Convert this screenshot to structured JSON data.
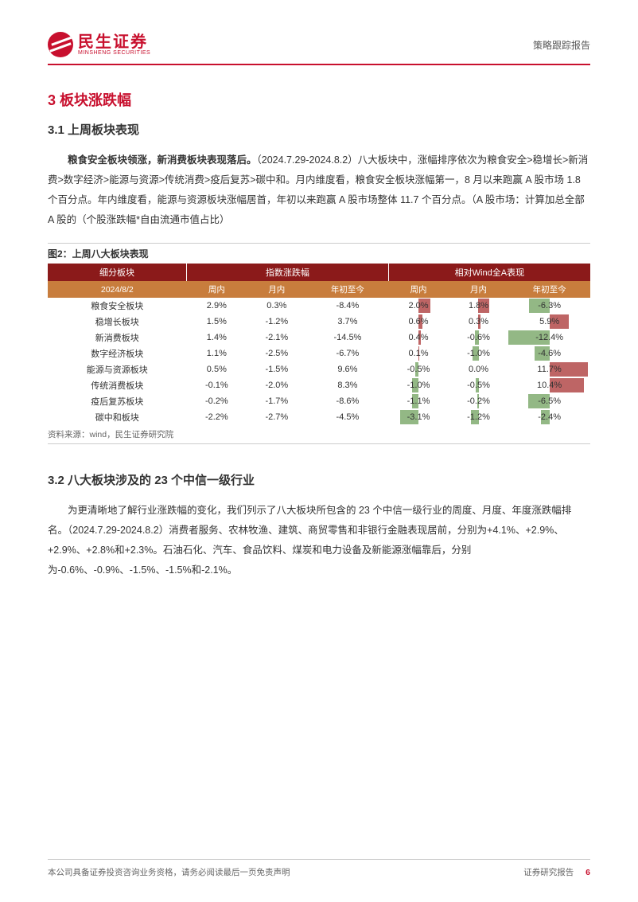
{
  "header": {
    "logo_cn": "民生证券",
    "logo_en": "MINSHENG SECURITIES",
    "report_type": "策略跟踪报告"
  },
  "section3": {
    "title": "3 板块涨跌幅",
    "sub1": {
      "title": "3.1 上周板块表现",
      "para_bold": "粮食安全板块领涨，新消费板块表现落后。",
      "para_rest": "（2024.7.29-2024.8.2）八大板块中，涨幅排序依次为粮食安全>稳增长>新消费>数字经济>能源与资源>传统消费>疫后复苏>碳中和。月内维度看，粮食安全板块涨幅第一，8 月以来跑赢 A 股市场 1.8 个百分点。年内维度看，能源与资源板块涨幅居首，年初以来跑赢 A 股市场整体 11.7 个百分点。（A 股市场：计算加总全部 A 股的（个股涨跌幅*自由流通市值占比）"
    },
    "figure2": {
      "title": "图2：上周八大板块表现",
      "source": "资料来源：wind，民生证券研究院",
      "top_headers": [
        "细分板块",
        "指数涨跌幅",
        "相对Wind全A表现"
      ],
      "sub_headers": [
        "2024/8/2",
        "周内",
        "月内",
        "年初至今",
        "周内",
        "月内",
        "年初至今"
      ],
      "header_bg": "#8b1a1a",
      "subheader_bg": "#c87d3d",
      "header_fg": "#ffffff",
      "pos_bar_color": "#a83232",
      "neg_bar_color": "#6fa05c",
      "cell_bg": "#ffffff",
      "text_color": "#000000",
      "rows": [
        {
          "name": "粮食安全板块",
          "idx_w": "2.9%",
          "idx_m": "0.3%",
          "idx_y": "-8.4%",
          "rel_w": {
            "v": "2.0%",
            "bar": 20,
            "dir": "pos"
          },
          "rel_m": {
            "v": "1.8%",
            "bar": 18,
            "dir": "pos"
          },
          "rel_y": {
            "v": "-6.3%",
            "bar": -25,
            "dir": "neg"
          }
        },
        {
          "name": "稳增长板块",
          "idx_w": "1.5%",
          "idx_m": "-1.2%",
          "idx_y": "3.7%",
          "rel_w": {
            "v": "0.6%",
            "bar": 6,
            "dir": "pos"
          },
          "rel_m": {
            "v": "0.3%",
            "bar": 3,
            "dir": "pos"
          },
          "rel_y": {
            "v": "5.9%",
            "bar": 24,
            "dir": "pos"
          }
        },
        {
          "name": "新消费板块",
          "idx_w": "1.4%",
          "idx_m": "-2.1%",
          "idx_y": "-14.5%",
          "rel_w": {
            "v": "0.4%",
            "bar": 4,
            "dir": "pos"
          },
          "rel_m": {
            "v": "-0.6%",
            "bar": -6,
            "dir": "neg"
          },
          "rel_y": {
            "v": "-12.4%",
            "bar": -50,
            "dir": "neg"
          }
        },
        {
          "name": "数字经济板块",
          "idx_w": "1.1%",
          "idx_m": "-2.5%",
          "idx_y": "-6.7%",
          "rel_w": {
            "v": "0.1%",
            "bar": 1,
            "dir": "pos"
          },
          "rel_m": {
            "v": "-1.0%",
            "bar": -10,
            "dir": "neg"
          },
          "rel_y": {
            "v": "-4.6%",
            "bar": -18,
            "dir": "neg"
          }
        },
        {
          "name": "能源与资源板块",
          "idx_w": "0.5%",
          "idx_m": "-1.5%",
          "idx_y": "9.6%",
          "rel_w": {
            "v": "-0.5%",
            "bar": -5,
            "dir": "neg"
          },
          "rel_m": {
            "v": "0.0%",
            "bar": 0,
            "dir": "pos"
          },
          "rel_y": {
            "v": "11.7%",
            "bar": 47,
            "dir": "pos"
          }
        },
        {
          "name": "传统消费板块",
          "idx_w": "-0.1%",
          "idx_m": "-2.0%",
          "idx_y": "8.3%",
          "rel_w": {
            "v": "-1.0%",
            "bar": -10,
            "dir": "neg"
          },
          "rel_m": {
            "v": "-0.5%",
            "bar": -5,
            "dir": "neg"
          },
          "rel_y": {
            "v": "10.4%",
            "bar": 42,
            "dir": "pos"
          }
        },
        {
          "name": "疫后复苏板块",
          "idx_w": "-0.2%",
          "idx_m": "-1.7%",
          "idx_y": "-8.6%",
          "rel_w": {
            "v": "-1.1%",
            "bar": -11,
            "dir": "neg"
          },
          "rel_m": {
            "v": "-0.2%",
            "bar": -2,
            "dir": "neg"
          },
          "rel_y": {
            "v": "-6.5%",
            "bar": -26,
            "dir": "neg"
          }
        },
        {
          "name": "碳中和板块",
          "idx_w": "-2.2%",
          "idx_m": "-2.7%",
          "idx_y": "-4.5%",
          "rel_w": {
            "v": "-3.1%",
            "bar": -31,
            "dir": "neg"
          },
          "rel_m": {
            "v": "-1.2%",
            "bar": -12,
            "dir": "neg"
          },
          "rel_y": {
            "v": "-2.4%",
            "bar": -10,
            "dir": "neg"
          }
        }
      ]
    },
    "sub2": {
      "title": "3.2 八大板块涉及的 23 个中信一级行业",
      "para": "为更清晰地了解行业涨跌幅的变化，我们列示了八大板块所包含的 23 个中信一级行业的周度、月度、年度涨跌幅排名。（2024.7.29-2024.8.2）消费者服务、农林牧渔、建筑、商贸零售和非银行金融表现居前，分别为+4.1%、+2.9%、+2.9%、+2.8%和+2.3%。石油石化、汽车、食品饮料、煤炭和电力设备及新能源涨幅靠后，分别为-0.6%、-0.9%、-1.5%、-1.5%和-2.1%。"
    }
  },
  "footer": {
    "left": "本公司具备证券投资咨询业务资格，请务必阅读最后一页免责声明",
    "right_label": "证券研究报告",
    "page_num": "6"
  }
}
